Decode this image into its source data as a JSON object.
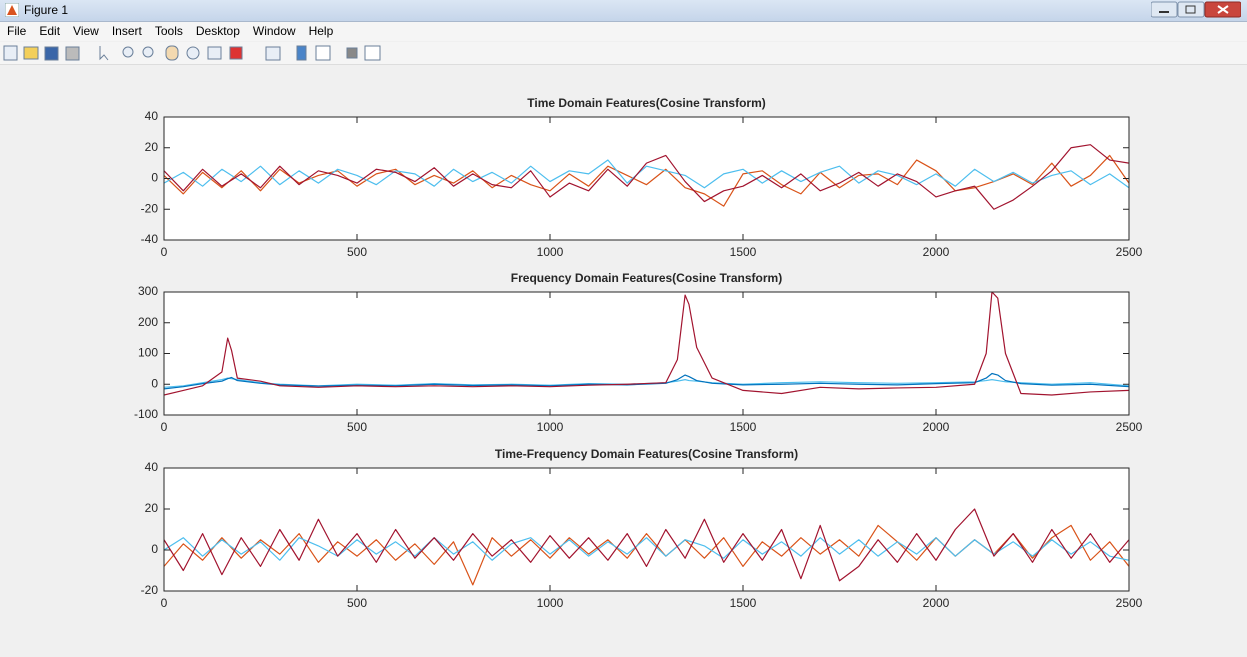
{
  "window": {
    "title": "Figure 1",
    "menu": [
      "File",
      "Edit",
      "View",
      "Insert",
      "Tools",
      "Desktop",
      "Window",
      "Help"
    ]
  },
  "chart_data": [
    {
      "type": "line",
      "title": "Time Domain Features(Cosine Transform)",
      "x": [
        0,
        50,
        100,
        150,
        200,
        250,
        300,
        350,
        400,
        450,
        500,
        550,
        600,
        650,
        700,
        750,
        800,
        850,
        900,
        950,
        1000,
        1050,
        1100,
        1150,
        1200,
        1250,
        1300,
        1350,
        1400,
        1450,
        1500,
        1550,
        1600,
        1650,
        1700,
        1750,
        1800,
        1850,
        1900,
        1950,
        2000,
        2050,
        2100,
        2150,
        2200,
        2250,
        2300,
        2350,
        2400,
        2450,
        2500
      ],
      "series": [
        {
          "color": "#d95319",
          "values": [
            2,
            -10,
            4,
            -6,
            5,
            -8,
            6,
            -3,
            2,
            5,
            -5,
            3,
            6,
            -4,
            2,
            -3,
            5,
            -6,
            2,
            -4,
            -8,
            3,
            -5,
            8,
            2,
            -4,
            6,
            -6,
            -10,
            -18,
            3,
            5,
            -4,
            -10,
            4,
            -6,
            2,
            3,
            -4,
            12,
            5,
            -8,
            -6,
            -2,
            3,
            -4,
            10,
            -5,
            2,
            15,
            -3
          ]
        },
        {
          "color": "#4dbeee",
          "values": [
            -3,
            4,
            -5,
            6,
            -2,
            8,
            -4,
            5,
            -3,
            6,
            2,
            -4,
            5,
            3,
            -5,
            6,
            -2,
            4,
            -3,
            8,
            -2,
            5,
            3,
            12,
            -3,
            8,
            5,
            2,
            -6,
            3,
            6,
            -3,
            5,
            -2,
            4,
            8,
            -3,
            5,
            2,
            -4,
            3,
            -5,
            6,
            -2,
            4,
            -3,
            2,
            5,
            -4,
            3,
            -6
          ]
        },
        {
          "color": "#a2142f",
          "values": [
            5,
            -8,
            6,
            -5,
            3,
            -6,
            8,
            -4,
            5,
            2,
            -3,
            6,
            4,
            -2,
            7,
            -5,
            3,
            -4,
            -6,
            5,
            -12,
            -3,
            -8,
            6,
            -5,
            10,
            15,
            -2,
            -15,
            -8,
            -5,
            2,
            -6,
            3,
            -8,
            -3,
            4,
            -5,
            3,
            -2,
            -12,
            -8,
            -5,
            -20,
            -14,
            -5,
            5,
            20,
            22,
            12,
            10
          ]
        }
      ],
      "xlim": [
        0,
        2500
      ],
      "xticks": [
        0,
        500,
        1000,
        1500,
        2000,
        2500
      ],
      "ylim": [
        -40,
        40
      ],
      "yticks": [
        -40,
        -20,
        0,
        20,
        40
      ]
    },
    {
      "type": "line",
      "title": "Frequency Domain Features(Cosine Transform)",
      "x": [
        0,
        50,
        100,
        150,
        165,
        175,
        190,
        250,
        300,
        400,
        500,
        600,
        700,
        800,
        900,
        1000,
        1100,
        1200,
        1300,
        1330,
        1350,
        1360,
        1380,
        1420,
        1500,
        1600,
        1700,
        1800,
        1900,
        2000,
        2100,
        2130,
        2145,
        2160,
        2180,
        2220,
        2300,
        2400,
        2500
      ],
      "series": [
        {
          "color": "#4dbeee",
          "values": [
            -10,
            -5,
            5,
            15,
            20,
            18,
            15,
            5,
            0,
            -5,
            0,
            -3,
            2,
            -2,
            0,
            -3,
            2,
            0,
            5,
            10,
            15,
            12,
            10,
            5,
            0,
            5,
            8,
            5,
            3,
            5,
            8,
            12,
            15,
            12,
            8,
            5,
            0,
            5,
            -5
          ]
        },
        {
          "color": "#0072bd",
          "values": [
            -15,
            -8,
            2,
            10,
            18,
            22,
            12,
            3,
            -2,
            -6,
            -3,
            -5,
            0,
            -4,
            -2,
            -5,
            0,
            -2,
            3,
            15,
            30,
            25,
            12,
            3,
            -2,
            0,
            3,
            0,
            -2,
            2,
            5,
            20,
            35,
            30,
            12,
            2,
            -3,
            0,
            -8
          ]
        },
        {
          "color": "#a2142f",
          "values": [
            -35,
            -20,
            -5,
            40,
            150,
            110,
            20,
            10,
            -5,
            -10,
            -5,
            -8,
            -5,
            -8,
            -5,
            -8,
            -3,
            0,
            5,
            80,
            290,
            260,
            120,
            20,
            -20,
            -30,
            -10,
            -15,
            -12,
            -10,
            0,
            100,
            300,
            280,
            100,
            -30,
            -35,
            -25,
            -20
          ]
        }
      ],
      "xlim": [
        0,
        2500
      ],
      "xticks": [
        0,
        500,
        1000,
        1500,
        2000,
        2500
      ],
      "ylim": [
        -100,
        300
      ],
      "yticks": [
        -100,
        0,
        100,
        200,
        300
      ]
    },
    {
      "type": "line",
      "title": "Time-Frequency Domain Features(Cosine Transform)",
      "x": [
        0,
        50,
        100,
        150,
        200,
        250,
        300,
        350,
        400,
        450,
        500,
        550,
        600,
        650,
        700,
        750,
        800,
        850,
        900,
        950,
        1000,
        1050,
        1100,
        1150,
        1200,
        1250,
        1300,
        1350,
        1400,
        1450,
        1500,
        1550,
        1600,
        1650,
        1700,
        1750,
        1800,
        1850,
        1900,
        1950,
        2000,
        2050,
        2100,
        2150,
        2200,
        2250,
        2300,
        2350,
        2400,
        2450,
        2500
      ],
      "series": [
        {
          "color": "#d95319",
          "values": [
            -8,
            3,
            -5,
            6,
            -4,
            5,
            -2,
            8,
            -6,
            4,
            -3,
            5,
            -5,
            3,
            -7,
            4,
            -17,
            6,
            -3,
            5,
            -4,
            6,
            -2,
            5,
            -4,
            8,
            -3,
            5,
            -4,
            6,
            -8,
            4,
            -3,
            6,
            -2,
            5,
            -3,
            12,
            4,
            -5,
            6,
            -3,
            5,
            -2,
            8,
            -4,
            6,
            12,
            -5,
            4,
            -8
          ]
        },
        {
          "color": "#4dbeee",
          "values": [
            0,
            6,
            -3,
            5,
            -2,
            4,
            -5,
            6,
            2,
            -3,
            5,
            -2,
            4,
            -3,
            6,
            -2,
            4,
            -5,
            3,
            6,
            -2,
            5,
            -3,
            4,
            -2,
            6,
            -3,
            5,
            2,
            -4,
            5,
            -2,
            4,
            -3,
            6,
            -2,
            5,
            -3,
            4,
            -2,
            6,
            -3,
            5,
            -2,
            4,
            -3,
            5,
            -2,
            4,
            -3,
            -5
          ]
        },
        {
          "color": "#a2142f",
          "values": [
            5,
            -10,
            8,
            -12,
            6,
            -8,
            10,
            -5,
            15,
            -3,
            8,
            -6,
            10,
            -4,
            6,
            -5,
            8,
            -3,
            5,
            -6,
            7,
            -4,
            6,
            -5,
            8,
            -8,
            10,
            -4,
            15,
            -6,
            8,
            -5,
            10,
            -14,
            12,
            -15,
            -8,
            5,
            -6,
            8,
            -5,
            10,
            20,
            -3,
            8,
            -6,
            10,
            -4,
            8,
            -6,
            5
          ]
        }
      ],
      "xlim": [
        0,
        2500
      ],
      "xticks": [
        0,
        500,
        1000,
        1500,
        2000,
        2500
      ],
      "ylim": [
        -20,
        40
      ],
      "yticks": [
        -20,
        0,
        20,
        40
      ]
    }
  ]
}
